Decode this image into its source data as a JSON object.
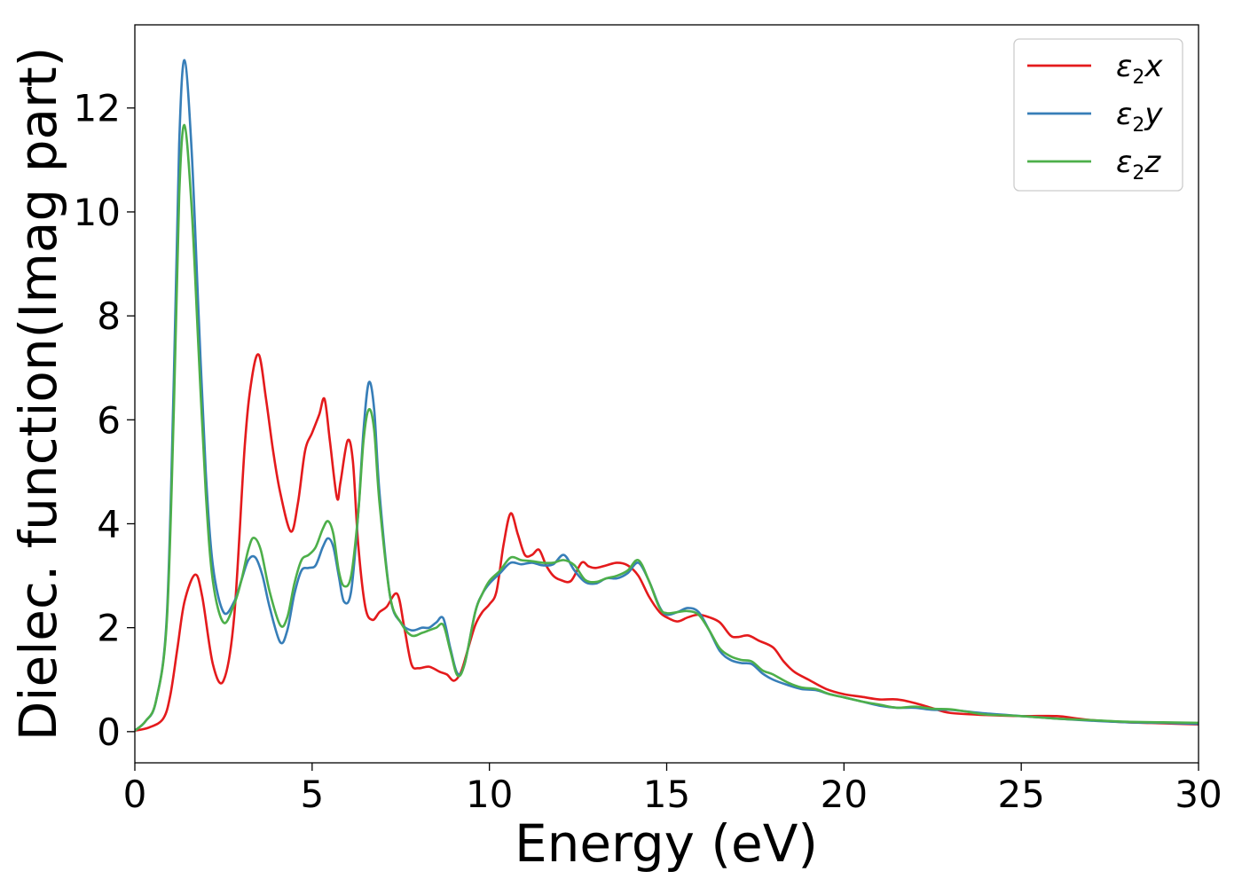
{
  "chart_data": {
    "type": "line",
    "title": "",
    "xlabel": "Energy (eV)",
    "ylabel": "Dielec. function(Imag part)",
    "xlim": [
      0,
      30
    ],
    "ylim": [
      -0.6,
      13.6
    ],
    "xticks": [
      0,
      5,
      10,
      15,
      20,
      25,
      30
    ],
    "yticks": [
      0,
      2,
      4,
      6,
      8,
      10,
      12
    ],
    "grid": false,
    "legend_position": "top-right",
    "series": [
      {
        "name": "ε2x",
        "legend_base": "ε",
        "legend_sub": "2",
        "legend_suffix": "x",
        "color": "#e41a1c",
        "x": [
          0,
          0.4,
          0.8,
          1.0,
          1.2,
          1.4,
          1.7,
          1.9,
          2.2,
          2.5,
          2.8,
          3.1,
          3.3,
          3.5,
          3.7,
          3.9,
          4.1,
          4.4,
          4.6,
          4.8,
          5.0,
          5.2,
          5.35,
          5.5,
          5.7,
          5.8,
          6.0,
          6.15,
          6.3,
          6.5,
          6.7,
          6.9,
          7.1,
          7.4,
          7.6,
          7.8,
          8.0,
          8.3,
          8.6,
          8.8,
          9.0,
          9.2,
          9.4,
          9.6,
          9.8,
          10.0,
          10.2,
          10.4,
          10.6,
          10.8,
          11.0,
          11.2,
          11.4,
          11.6,
          11.8,
          12.0,
          12.3,
          12.6,
          12.8,
          13.0,
          13.3,
          13.6,
          13.9,
          14.2,
          14.5,
          14.8,
          15.0,
          15.3,
          15.6,
          15.9,
          16.2,
          16.5,
          16.8,
          17.0,
          17.3,
          17.6,
          18.0,
          18.3,
          18.6,
          19.0,
          19.5,
          20.0,
          20.5,
          21.0,
          21.5,
          22.0,
          22.5,
          23.0,
          24.0,
          25.0,
          26.0,
          26.5,
          27.0,
          28.0,
          29.0,
          30.0
        ],
        "y": [
          0.02,
          0.08,
          0.25,
          0.7,
          1.6,
          2.5,
          3.02,
          2.6,
          1.3,
          0.98,
          2.2,
          5.5,
          6.8,
          7.25,
          6.4,
          5.4,
          4.6,
          3.85,
          4.4,
          5.4,
          5.75,
          6.1,
          6.4,
          5.6,
          4.5,
          4.8,
          5.6,
          5.2,
          3.6,
          2.4,
          2.15,
          2.3,
          2.4,
          2.65,
          2.0,
          1.3,
          1.22,
          1.25,
          1.15,
          1.1,
          0.98,
          1.15,
          1.6,
          2.05,
          2.3,
          2.45,
          2.7,
          3.6,
          4.2,
          3.8,
          3.4,
          3.4,
          3.5,
          3.2,
          3.0,
          2.92,
          2.9,
          3.25,
          3.18,
          3.15,
          3.2,
          3.25,
          3.2,
          3.0,
          2.6,
          2.3,
          2.2,
          2.12,
          2.2,
          2.25,
          2.2,
          2.1,
          1.85,
          1.82,
          1.85,
          1.75,
          1.62,
          1.35,
          1.15,
          1.0,
          0.82,
          0.72,
          0.67,
          0.62,
          0.62,
          0.55,
          0.45,
          0.36,
          0.32,
          0.3,
          0.3,
          0.26,
          0.22,
          0.18,
          0.16,
          0.14
        ]
      },
      {
        "name": "ε2y",
        "legend_base": "ε",
        "legend_sub": "2",
        "legend_suffix": "y",
        "color": "#377eb8",
        "x": [
          0,
          0.3,
          0.6,
          0.9,
          1.1,
          1.25,
          1.4,
          1.6,
          1.8,
          2.0,
          2.2,
          2.5,
          2.8,
          3.0,
          3.2,
          3.4,
          3.6,
          3.8,
          4.1,
          4.3,
          4.5,
          4.7,
          4.9,
          5.1,
          5.3,
          5.45,
          5.6,
          5.75,
          5.9,
          6.1,
          6.3,
          6.45,
          6.6,
          6.75,
          6.9,
          7.2,
          7.5,
          7.8,
          8.1,
          8.3,
          8.5,
          8.7,
          8.9,
          9.1,
          9.3,
          9.6,
          9.8,
          10.0,
          10.3,
          10.6,
          10.9,
          11.2,
          11.5,
          11.8,
          12.1,
          12.4,
          12.7,
          13.0,
          13.3,
          13.6,
          13.9,
          14.2,
          14.5,
          14.8,
          15.0,
          15.3,
          15.6,
          15.9,
          16.2,
          16.5,
          16.8,
          17.1,
          17.4,
          17.7,
          18.0,
          18.4,
          18.8,
          19.2,
          19.6,
          20.0,
          20.5,
          21.0,
          21.5,
          22.0,
          22.5,
          23.0,
          24.0,
          25.0,
          26.0,
          27.0,
          28.0,
          29.0,
          30.0
        ],
        "y": [
          0.02,
          0.2,
          0.6,
          2.2,
          6.8,
          11.3,
          12.92,
          11.2,
          8.0,
          5.0,
          3.2,
          2.3,
          2.5,
          2.9,
          3.3,
          3.35,
          3.0,
          2.4,
          1.72,
          1.95,
          2.65,
          3.1,
          3.15,
          3.2,
          3.55,
          3.72,
          3.55,
          3.0,
          2.5,
          2.7,
          4.2,
          5.8,
          6.72,
          6.2,
          4.6,
          2.6,
          2.1,
          1.95,
          2.0,
          2.0,
          2.1,
          2.18,
          1.6,
          1.12,
          1.3,
          2.3,
          2.65,
          2.85,
          3.05,
          3.25,
          3.22,
          3.25,
          3.2,
          3.22,
          3.4,
          3.1,
          2.88,
          2.85,
          2.95,
          2.95,
          3.05,
          3.25,
          2.9,
          2.4,
          2.25,
          2.3,
          2.38,
          2.3,
          1.95,
          1.55,
          1.38,
          1.32,
          1.3,
          1.12,
          1.0,
          0.9,
          0.82,
          0.8,
          0.72,
          0.66,
          0.58,
          0.5,
          0.46,
          0.46,
          0.42,
          0.42,
          0.35,
          0.3,
          0.25,
          0.21,
          0.18,
          0.17,
          0.15
        ]
      },
      {
        "name": "ε2z",
        "legend_base": "ε",
        "legend_sub": "2",
        "legend_suffix": "z",
        "color": "#4daf4a",
        "x": [
          0,
          0.3,
          0.6,
          0.9,
          1.1,
          1.25,
          1.4,
          1.6,
          1.8,
          2.0,
          2.2,
          2.5,
          2.8,
          3.0,
          3.2,
          3.35,
          3.55,
          3.8,
          4.1,
          4.3,
          4.5,
          4.7,
          4.9,
          5.1,
          5.3,
          5.45,
          5.6,
          5.75,
          5.9,
          6.1,
          6.3,
          6.45,
          6.6,
          6.75,
          6.9,
          7.2,
          7.5,
          7.8,
          8.1,
          8.3,
          8.5,
          8.7,
          8.9,
          9.1,
          9.3,
          9.6,
          9.8,
          10.0,
          10.3,
          10.6,
          10.9,
          11.2,
          11.5,
          11.8,
          12.1,
          12.4,
          12.7,
          13.0,
          13.3,
          13.6,
          13.9,
          14.2,
          14.5,
          14.8,
          15.0,
          15.3,
          15.6,
          15.9,
          16.2,
          16.5,
          16.8,
          17.1,
          17.4,
          17.7,
          18.0,
          18.4,
          18.8,
          19.2,
          19.6,
          20.0,
          20.5,
          21.0,
          21.5,
          22.0,
          22.5,
          23.0,
          23.5,
          24.0,
          25.0,
          26.0,
          27.0,
          28.0,
          29.0,
          30.0
        ],
        "y": [
          0.02,
          0.2,
          0.6,
          2.1,
          6.2,
          10.3,
          11.67,
          10.1,
          7.3,
          4.6,
          2.9,
          2.1,
          2.45,
          2.9,
          3.5,
          3.73,
          3.5,
          2.7,
          2.05,
          2.2,
          2.85,
          3.3,
          3.4,
          3.55,
          3.9,
          4.05,
          3.8,
          3.1,
          2.8,
          3.0,
          4.2,
          5.6,
          6.2,
          5.8,
          4.4,
          2.6,
          2.1,
          1.85,
          1.9,
          1.95,
          2.0,
          2.05,
          1.55,
          1.08,
          1.3,
          2.3,
          2.65,
          2.9,
          3.1,
          3.35,
          3.3,
          3.28,
          3.25,
          3.25,
          3.3,
          3.2,
          2.92,
          2.88,
          2.95,
          3.0,
          3.1,
          3.3,
          2.9,
          2.38,
          2.28,
          2.3,
          2.32,
          2.25,
          1.95,
          1.6,
          1.45,
          1.38,
          1.35,
          1.18,
          1.1,
          0.95,
          0.85,
          0.82,
          0.72,
          0.66,
          0.58,
          0.52,
          0.46,
          0.48,
          0.44,
          0.43,
          0.38,
          0.33,
          0.3,
          0.25,
          0.22,
          0.19,
          0.18,
          0.17
        ]
      }
    ]
  }
}
